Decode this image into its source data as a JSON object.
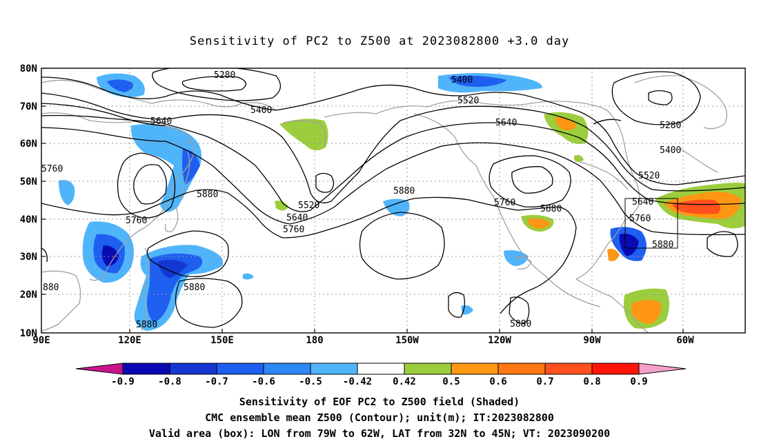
{
  "title": "Sensitivity of PC2 to Z500 at 2023082800 +3.0 day",
  "lat_labels": [
    "80N",
    "70N",
    "60N",
    "50N",
    "40N",
    "30N",
    "20N",
    "10N"
  ],
  "lon_labels": [
    "90E",
    "120E",
    "150E",
    "180",
    "150W",
    "120W",
    "90W",
    "60W"
  ],
  "contour_labels": {
    "c1": "5280",
    "c2": "5400",
    "c3": "5400",
    "c4": "5520",
    "c5": "5640",
    "c6": "5640",
    "c7": "5280",
    "c8": "5400",
    "c9": "5520",
    "c10": "5760",
    "c11": "5880",
    "c12": "5880",
    "c13": "5520",
    "c14": "5640",
    "c15": "5760",
    "c16": "5760",
    "c17": "5880",
    "c18": "5640",
    "c19": "5760",
    "c20": "5880",
    "c21": "5760",
    "c22": "5880",
    "c23": "880",
    "c24": "5880",
    "c25": "5880"
  },
  "colorbar": {
    "ticks": [
      "-0.9",
      "-0.8",
      "-0.7",
      "-0.6",
      "-0.5",
      "-0.42",
      "0.42",
      "0.5",
      "0.6",
      "0.7",
      "0.8",
      "0.9"
    ],
    "colors": [
      "#0a0ab4",
      "#1437d2",
      "#1e5ff0",
      "#2d87f5",
      "#50b4fa",
      "#ffffff",
      "#9ccd3c",
      "#ff9614",
      "#ff7814",
      "#ff501e",
      "#ff140a"
    ],
    "low_color": "#c8148c",
    "high_color": "#f5a0c8"
  },
  "footer": {
    "line1": "Sensitivity of EOF PC2 to Z500 field (Shaded)",
    "line2": "CMC ensemble mean Z500 (Contour); unit(m); IT:2023082800",
    "line3": "Valid area (box): LON from 79W to 62W, LAT from 32N to 45N; VT: 2023090200"
  },
  "colors": {
    "coast": "#a0a0a0",
    "contour": "#000000",
    "grid": "#9a9a9a",
    "neg_strong": "#1437d2",
    "neg_mid": "#1e5ff0",
    "neg_weak": "#50b4fa",
    "pos_weak": "#9ccd3c",
    "pos_mid": "#ff9614",
    "pos_strong": "#ff501e"
  }
}
